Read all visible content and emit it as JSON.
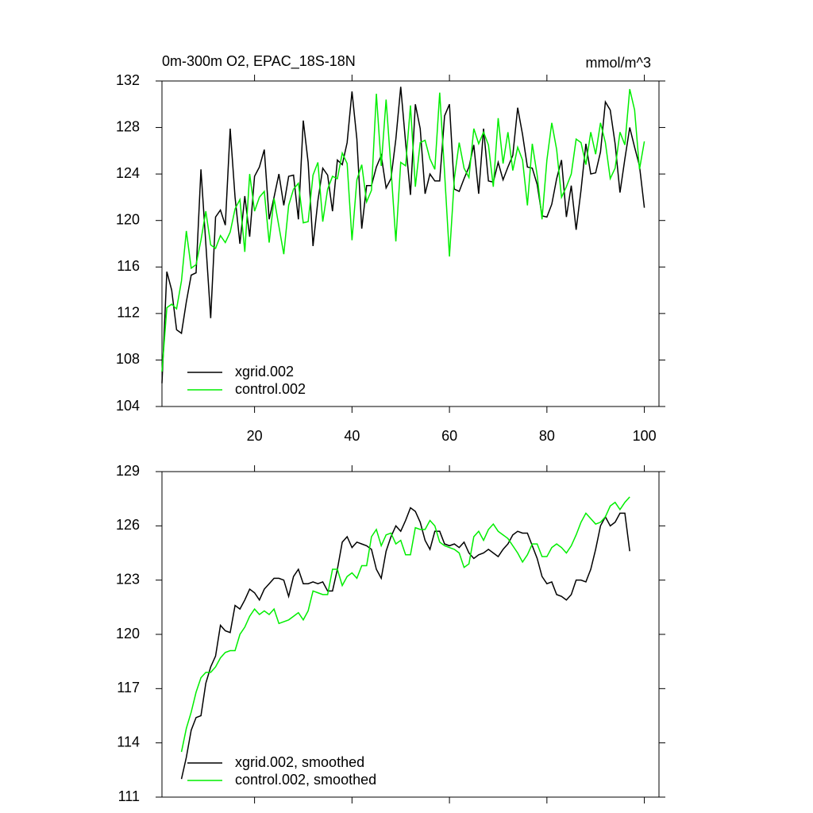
{
  "chart_data": [
    {
      "type": "line",
      "title": "0m-300m O2, EPAC_18S-18N",
      "units": "mmol/m^3",
      "x": [
        1,
        2,
        3,
        4,
        5,
        6,
        7,
        8,
        9,
        10,
        11,
        12,
        13,
        14,
        15,
        16,
        17,
        18,
        19,
        20,
        21,
        22,
        23,
        24,
        25,
        26,
        27,
        28,
        29,
        30,
        31,
        32,
        33,
        34,
        35,
        36,
        37,
        38,
        39,
        40,
        41,
        42,
        43,
        44,
        45,
        46,
        47,
        48,
        49,
        50,
        51,
        52,
        53,
        54,
        55,
        56,
        57,
        58,
        59,
        60,
        61,
        62,
        63,
        64,
        65,
        66,
        67,
        68,
        69,
        70,
        71,
        72,
        73,
        74,
        75,
        76,
        77,
        78,
        79,
        80,
        81,
        82,
        83,
        84,
        85,
        86,
        87,
        88,
        89,
        90,
        91,
        92,
        93,
        94,
        95,
        96,
        97,
        98,
        99,
        100
      ],
      "series": [
        {
          "name": "xgrid.002",
          "color": "#000000",
          "values": [
            106,
            115.6,
            114,
            110.6,
            110.3,
            113,
            115.3,
            115.5,
            124.4,
            118,
            111.6,
            120.3,
            120.9,
            119.6,
            127.9,
            122,
            118,
            122.1,
            118.6,
            123.8,
            124.6,
            126.1,
            120.1,
            122,
            124,
            121.3,
            123.8,
            123.9,
            120.1,
            128.6,
            125,
            117.8,
            121.7,
            124.5,
            123.9,
            120.8,
            125.2,
            124.8,
            126.7,
            131.1,
            127,
            119.3,
            123,
            123,
            124.6,
            125.6,
            122.8,
            123.6,
            127,
            131.5,
            126.7,
            122.2,
            130,
            127.9,
            122.3,
            124,
            123.4,
            123.4,
            129,
            130,
            122.7,
            122.5,
            123.6,
            124.6,
            126.5,
            122.3,
            127.9,
            123.4,
            123.3,
            125,
            123.5,
            124.6,
            125.6,
            129.7,
            127.4,
            124.6,
            124.5,
            123.1,
            120.4,
            120.3,
            121.4,
            123.6,
            125.2,
            120.3,
            123,
            119.2,
            122.6,
            126.6,
            124,
            124.1,
            125.9,
            130.2,
            129.5,
            126.6,
            122.4,
            125.3,
            128,
            126.3,
            124.7,
            121.1
          ]
        },
        {
          "name": "control.002",
          "color": "#00ee00",
          "values": [
            107,
            112.5,
            112.8,
            112.4,
            114.8,
            119.1,
            115.9,
            116.2,
            118.3,
            120.8,
            117.9,
            117.6,
            118.7,
            118.1,
            119,
            121,
            121.8,
            117.3,
            124,
            120.8,
            122,
            122.5,
            118.1,
            121.9,
            119.5,
            117.1,
            121.3,
            122.7,
            123.2,
            119.8,
            119.9,
            123.9,
            125,
            119.9,
            122.7,
            123.8,
            123.6,
            125.8,
            124.9,
            118.3,
            123.5,
            124.8,
            121.6,
            122.6,
            130.9,
            124.7,
            130.4,
            124.5,
            118.2,
            125,
            124.7,
            129.9,
            122.9,
            126.7,
            126.9,
            125.3,
            124.4,
            131,
            124.1,
            116.9,
            123.6,
            126.7,
            124.5,
            123.7,
            127.9,
            126.6,
            127.6,
            126.5,
            122.9,
            128.8,
            124.9,
            127.6,
            124.3,
            126.3,
            125.2,
            121.3,
            126.6,
            123.9,
            120.1,
            125.2,
            128.4,
            126.1,
            122,
            122.9,
            124,
            127,
            126.7,
            124.8,
            127.6,
            125.7,
            128.4,
            126.7,
            123.6,
            124.5,
            127.6,
            126.5,
            131.3,
            129.5,
            124.4,
            126.8
          ]
        }
      ],
      "xlim": [
        1,
        103
      ],
      "xticks": [
        20,
        40,
        60,
        80,
        100
      ],
      "xtick_labels": true,
      "ylim": [
        104,
        132
      ],
      "yticks": [
        104,
        108,
        112,
        116,
        120,
        124,
        128,
        132
      ],
      "legend": "lower-left"
    },
    {
      "type": "line",
      "x": [
        5,
        6,
        7,
        8,
        9,
        10,
        11,
        12,
        13,
        14,
        15,
        16,
        17,
        18,
        19,
        20,
        21,
        22,
        23,
        24,
        25,
        26,
        27,
        28,
        29,
        30,
        31,
        32,
        33,
        34,
        35,
        36,
        37,
        38,
        39,
        40,
        41,
        42,
        43,
        44,
        45,
        46,
        47,
        48,
        49,
        50,
        51,
        52,
        53,
        54,
        55,
        56,
        57,
        58,
        59,
        60,
        61,
        62,
        63,
        64,
        65,
        66,
        67,
        68,
        69,
        70,
        71,
        72,
        73,
        74,
        75,
        76,
        77,
        78,
        79,
        80,
        81,
        82,
        83,
        84,
        85,
        86,
        87,
        88,
        89,
        90,
        91,
        92,
        93,
        94,
        95,
        96,
        97
      ],
      "series": [
        {
          "name": "xgrid.002, smoothed",
          "color": "#000000",
          "values": [
            112,
            113.2,
            114.7,
            115.4,
            115.5,
            117.3,
            118.2,
            118.8,
            120.5,
            120.2,
            120.1,
            121.6,
            121.4,
            121.9,
            122.5,
            122.3,
            121.9,
            122.5,
            122.8,
            123.1,
            123.1,
            123,
            122.1,
            123.2,
            123.6,
            122.8,
            122.8,
            122.9,
            122.8,
            122.9,
            122.4,
            122.4,
            123.6,
            125.1,
            125.4,
            124.8,
            125.1,
            125,
            124.9,
            124.7,
            123.6,
            123.1,
            124.6,
            125.4,
            126,
            125.7,
            126.3,
            127,
            126.8,
            126.2,
            125.2,
            124.7,
            125.7,
            125.7,
            125,
            124.9,
            125,
            124.8,
            125.1,
            124.5,
            124.2,
            124.4,
            124.5,
            124.7,
            124.5,
            124.3,
            124.7,
            125,
            125.5,
            125.7,
            125.6,
            125.6,
            124.9,
            124.2,
            123.2,
            122.8,
            122.9,
            122.2,
            122.1,
            121.9,
            122.2,
            123,
            123,
            122.9,
            123.6,
            124.7,
            126,
            126.5,
            126,
            126.2,
            126.7,
            126.7,
            124.6
          ]
        },
        {
          "name": "control.002, smoothed",
          "color": "#00ee00",
          "values": [
            113.5,
            114.8,
            115.7,
            116.8,
            117.6,
            117.9,
            117.9,
            118.2,
            118.7,
            119,
            119.1,
            119.1,
            120,
            120.4,
            121,
            121.4,
            121.1,
            121.3,
            121.1,
            121.4,
            120.6,
            120.7,
            120.8,
            121,
            121.2,
            120.8,
            121.3,
            122.4,
            122.3,
            122.2,
            122.2,
            123.6,
            123.6,
            122.7,
            123.2,
            123.4,
            123.1,
            123.8,
            123.8,
            125.4,
            125.8,
            124.9,
            125.5,
            125.6,
            125,
            125.2,
            124.4,
            124.4,
            125.9,
            125.8,
            125.8,
            126.3,
            126,
            125.1,
            124.9,
            124.8,
            124.7,
            124.5,
            123.7,
            123.9,
            125.4,
            125.7,
            125.2,
            125.8,
            126.1,
            125.7,
            125.5,
            125.3,
            124.9,
            124.5,
            124,
            124.4,
            125,
            125,
            124.3,
            124.3,
            124.8,
            125,
            124.8,
            124.5,
            124.9,
            125.5,
            126.2,
            126.7,
            126.4,
            126.1,
            126.2,
            126.5,
            127.1,
            127.3,
            126.9,
            127.3,
            127.6
          ]
        }
      ],
      "xlim": [
        1,
        103
      ],
      "xticks": [
        20,
        40,
        60,
        80,
        100
      ],
      "xtick_labels": false,
      "ylim": [
        111,
        129
      ],
      "yticks": [
        111,
        114,
        117,
        120,
        123,
        126,
        129
      ],
      "legend": "lower-left"
    }
  ]
}
